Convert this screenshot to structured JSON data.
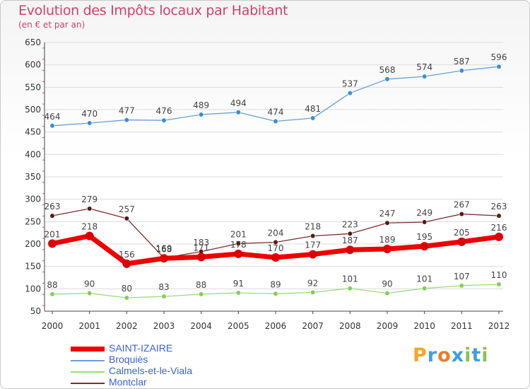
{
  "title": "Evolution des Impôts locaux par Habitant",
  "subtitle": "(en € et par an)",
  "chart_data": {
    "type": "line",
    "title": "Evolution des Impôts locaux par Habitant",
    "subtitle": "(en € et par an)",
    "xlabel": "",
    "ylabel": "",
    "x": [
      "2000",
      "2001",
      "2002",
      "2003",
      "2004",
      "2005",
      "2006",
      "2007",
      "2008",
      "2009",
      "2010",
      "2011",
      "2012"
    ],
    "ylim": [
      50,
      650
    ],
    "yticks": [
      50,
      100,
      150,
      200,
      250,
      300,
      350,
      400,
      450,
      500,
      550,
      600,
      650
    ],
    "grid": "horizontal",
    "legend_position": "bottom-left",
    "series": [
      {
        "name": "Broquiès",
        "color": "#6a9fd4",
        "marker": "#3a8fd0",
        "values": [
          464,
          470,
          477,
          476,
          489,
          494,
          474,
          481,
          537,
          568,
          574,
          587,
          596
        ],
        "labels": [
          "464",
          "470",
          "477",
          "476",
          "489",
          "494",
          "474",
          "481",
          "537",
          "568",
          "574",
          "587",
          "596"
        ]
      },
      {
        "name": "Montclar",
        "color": "#7a3030",
        "marker": "#5a1616",
        "values": [
          263,
          279,
          257,
          169,
          183,
          201,
          204,
          218,
          223,
          247,
          249,
          267,
          263
        ],
        "labels": [
          "263",
          "279",
          "257",
          "169",
          "183",
          "201",
          "204",
          "218",
          "223",
          "247",
          "249",
          "267",
          "263"
        ]
      },
      {
        "name": "SAINT-IZAIRE",
        "color": "#ee0000",
        "marker": "#dd0000",
        "values": [
          201,
          218,
          156,
          168,
          171,
          178,
          170,
          177,
          187,
          189,
          195,
          205,
          216
        ],
        "labels": [
          "201",
          "218",
          "156",
          "168",
          "171",
          "178",
          "170",
          "177",
          "187",
          "189",
          "195",
          "205",
          "216"
        ]
      },
      {
        "name": "Calmels-et-le-Viala",
        "color": "#99dd77",
        "marker": "#88cc55",
        "values": [
          88,
          90,
          80,
          83,
          88,
          91,
          89,
          92,
          101,
          90,
          101,
          107,
          110
        ],
        "labels": [
          "88",
          "90",
          "80",
          "83",
          "88",
          "91",
          "89",
          "92",
          "101",
          "90",
          "101",
          "107",
          "110"
        ]
      }
    ]
  },
  "legend": [
    {
      "label": "SAINT-IZAIRE",
      "color": "#ee0000",
      "thick": true
    },
    {
      "label": "Broquiès",
      "color": "#6a9fd4",
      "thick": false
    },
    {
      "label": "Calmels-et-le-Viala",
      "color": "#99dd77",
      "thick": false
    },
    {
      "label": "Montclar",
      "color": "#7a3030",
      "thick": false
    }
  ],
  "logo": {
    "text": "Proxiti",
    "letters": [
      {
        "ch": "P",
        "color": "#f5a623"
      },
      {
        "ch": "r",
        "color": "#3da0e0"
      },
      {
        "ch": "o",
        "color": "#f07a2a"
      },
      {
        "ch": "x",
        "color": "#3da0e0"
      },
      {
        "ch": "i",
        "color": "#8bc34a"
      },
      {
        "ch": "t",
        "color": "#3da0e0"
      },
      {
        "ch": "i",
        "color": "#8bc34a"
      }
    ]
  }
}
